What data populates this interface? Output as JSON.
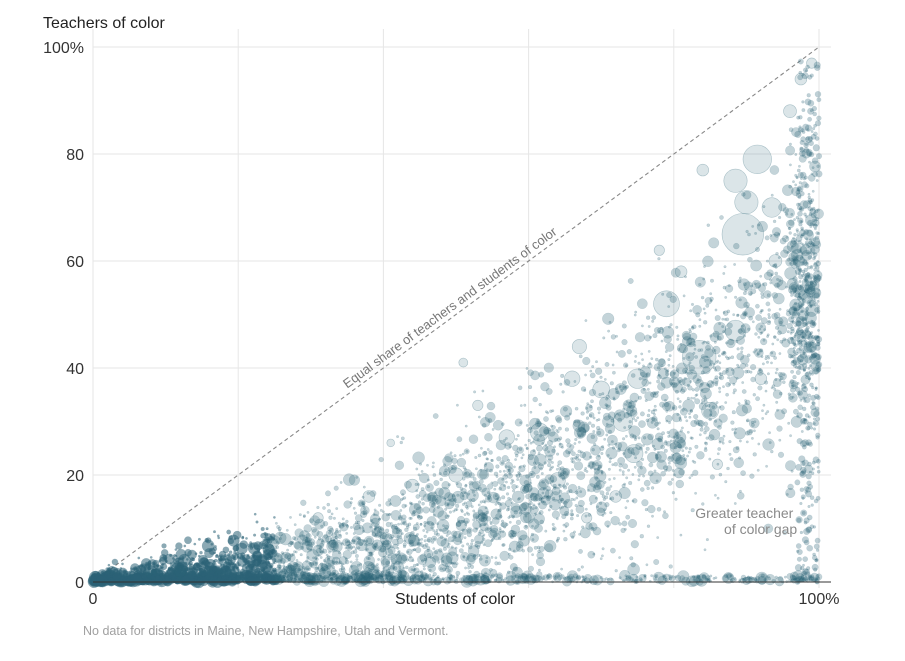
{
  "chart_data": {
    "type": "scatter",
    "title": "",
    "ylabel": "Teachers of color",
    "xlabel": "Students of color",
    "xlim": [
      0,
      100
    ],
    "ylim": [
      0,
      100
    ],
    "x_ticks": [
      {
        "value": 0,
        "label": "0"
      },
      {
        "value": 100,
        "label": "100%"
      }
    ],
    "y_ticks": [
      {
        "value": 0,
        "label": "0"
      },
      {
        "value": 20,
        "label": "20"
      },
      {
        "value": 40,
        "label": "40"
      },
      {
        "value": 60,
        "label": "60"
      },
      {
        "value": 80,
        "label": "80"
      },
      {
        "value": 100,
        "label": "100%"
      }
    ],
    "x_gridlines": [
      0,
      20,
      40,
      60,
      80,
      100
    ],
    "y_gridlines": [
      0,
      20,
      40,
      60,
      80,
      100
    ],
    "grid": true,
    "point_color": "#2b6376",
    "reference_line": {
      "from": [
        0,
        0
      ],
      "to": [
        100,
        100
      ],
      "label": "Equal share of teachers and students of color"
    },
    "annotation": {
      "lines": [
        "Greater teacher",
        "of color gap"
      ],
      "x": 97,
      "y": 12
    },
    "note": "No data for districts in Maine, New Hampshire, Utah and Vermont.",
    "highlighted_points": [
      {
        "x": 89.5,
        "y": 65,
        "size": 3.2
      },
      {
        "x": 91.5,
        "y": 79,
        "size": 2.2
      },
      {
        "x": 88.5,
        "y": 75,
        "size": 1.8
      },
      {
        "x": 90,
        "y": 71,
        "size": 1.8
      },
      {
        "x": 93.5,
        "y": 70,
        "size": 1.5
      },
      {
        "x": 83.5,
        "y": 42,
        "size": 2.6
      },
      {
        "x": 79,
        "y": 52,
        "size": 2.0
      },
      {
        "x": 88.5,
        "y": 47,
        "size": 1.6
      },
      {
        "x": 75,
        "y": 38,
        "size": 1.5
      },
      {
        "x": 73,
        "y": 30,
        "size": 1.5
      },
      {
        "x": 61.5,
        "y": 28,
        "size": 1.4
      },
      {
        "x": 74.5,
        "y": 24,
        "size": 1.4
      },
      {
        "x": 70,
        "y": 36,
        "size": 1.3
      },
      {
        "x": 85,
        "y": 32,
        "size": 1.3
      },
      {
        "x": 64,
        "y": 19,
        "size": 1.2
      },
      {
        "x": 57,
        "y": 27,
        "size": 1.2
      },
      {
        "x": 66,
        "y": 38,
        "size": 1.2
      },
      {
        "x": 67,
        "y": 44,
        "size": 1.1
      },
      {
        "x": 50,
        "y": 20,
        "size": 1.1
      },
      {
        "x": 44,
        "y": 18,
        "size": 1.0
      },
      {
        "x": 96,
        "y": 88,
        "size": 1.0
      },
      {
        "x": 97.5,
        "y": 94,
        "size": 0.9
      },
      {
        "x": 84,
        "y": 77,
        "size": 0.9
      },
      {
        "x": 78,
        "y": 62,
        "size": 0.8
      },
      {
        "x": 53,
        "y": 33,
        "size": 0.8
      },
      {
        "x": 38,
        "y": 16,
        "size": 0.9
      },
      {
        "x": 31,
        "y": 12,
        "size": 0.8
      },
      {
        "x": 24,
        "y": 7,
        "size": 0.8
      },
      {
        "x": 12,
        "y": 2,
        "size": 0.9
      },
      {
        "x": 8,
        "y": 1.5,
        "size": 0.8
      },
      {
        "x": 18,
        "y": 4,
        "size": 0.7
      },
      {
        "x": 41,
        "y": 26,
        "size": 0.6
      },
      {
        "x": 51,
        "y": 41,
        "size": 0.7
      },
      {
        "x": 94,
        "y": 60,
        "size": 1.0
      },
      {
        "x": 81,
        "y": 58,
        "size": 0.9
      },
      {
        "x": 99,
        "y": 97,
        "size": 0.8
      },
      {
        "x": 72,
        "y": 16,
        "size": 0.9
      },
      {
        "x": 86,
        "y": 22,
        "size": 0.8
      },
      {
        "x": 92,
        "y": 38,
        "size": 0.9
      },
      {
        "x": 68,
        "y": 12,
        "size": 0.8
      }
    ],
    "scatter_density": {
      "description": "thousands of small district points; dense near origin, spreading upward-right",
      "seed": 20160901,
      "count": 5200
    }
  }
}
